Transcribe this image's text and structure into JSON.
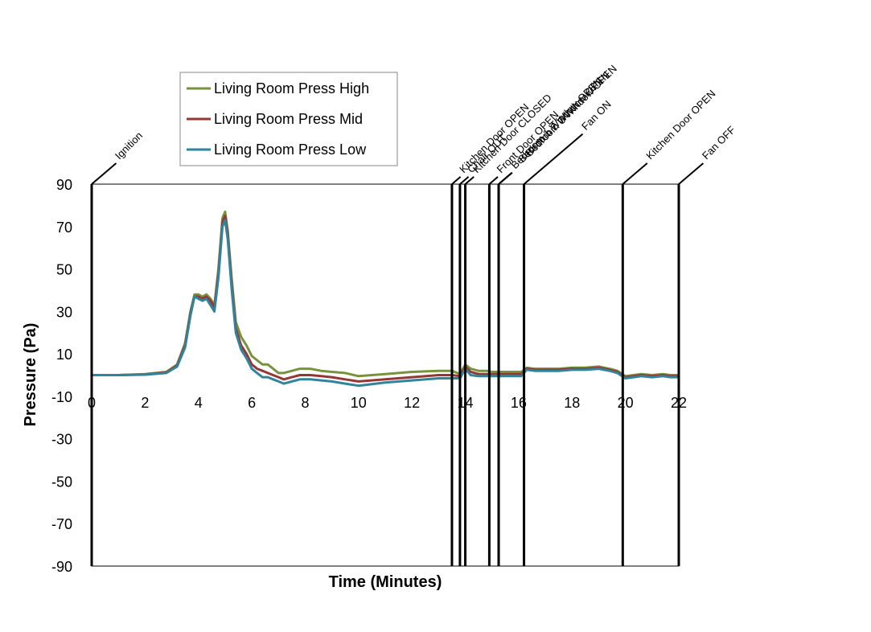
{
  "chart_data": {
    "type": "line",
    "title": "",
    "xlabel": "Time (Minutes)",
    "ylabel": "Pressure (Pa)",
    "xlim": [
      0,
      22
    ],
    "ylim": [
      -90,
      90
    ],
    "x_ticks": [
      0,
      2,
      4,
      6,
      8,
      10,
      12,
      14,
      16,
      18,
      20,
      22
    ],
    "y_ticks": [
      90,
      70,
      50,
      30,
      10,
      -10,
      -30,
      -50,
      -70,
      -90
    ],
    "grid": false,
    "legend_position": "top-left",
    "events": [
      {
        "label": "Ignition",
        "x": 0
      },
      {
        "label": "Kitchen Door OPEN",
        "x": 13.5
      },
      {
        "label": "Chair OUT",
        "x": 13.8
      },
      {
        "label": "Kitchen Door CLOSED",
        "x": 14.0
      },
      {
        "label": "Front Door OPEN",
        "x": 14.9
      },
      {
        "label": "Bedroom 1 Window OPEN",
        "x": 15.25
      },
      {
        "label": "Bedroom 2 Window OPEN",
        "x": 15.25
      },
      {
        "label": "Bedroom 3 Window OPEN",
        "x": 15.25
      },
      {
        "label": "Fan ON",
        "x": 16.2
      },
      {
        "label": "Kitchen Door OPEN",
        "x": 19.9
      },
      {
        "label": "Fan OFF",
        "x": 22.0
      }
    ],
    "series": [
      {
        "name": "Living Room Press High",
        "color": "#77933c",
        "x": [
          0,
          1,
          2,
          2.8,
          3.2,
          3.5,
          3.7,
          3.85,
          4.0,
          4.15,
          4.3,
          4.45,
          4.6,
          4.75,
          4.9,
          5.0,
          5.1,
          5.25,
          5.4,
          5.6,
          5.8,
          6.0,
          6.2,
          6.4,
          6.6,
          6.8,
          7.0,
          7.2,
          7.5,
          7.8,
          8.2,
          8.6,
          9.0,
          9.5,
          10.0,
          11.0,
          12.0,
          13.0,
          13.5,
          13.8,
          14.0,
          14.2,
          14.5,
          14.8,
          15.0,
          15.3,
          15.8,
          16.1,
          16.3,
          16.6,
          17.0,
          17.5,
          18.0,
          18.5,
          19.0,
          19.4,
          19.7,
          20.0,
          20.3,
          20.6,
          21.0,
          21.4,
          21.7,
          22.0
        ],
        "values": [
          0,
          0,
          0.5,
          1.5,
          5,
          15,
          30,
          38,
          38,
          37,
          38,
          36,
          33,
          50,
          74,
          77,
          68,
          45,
          25,
          18,
          14,
          9,
          7,
          5,
          5,
          3,
          1,
          1,
          2,
          3,
          3,
          2,
          1.5,
          1,
          -0.5,
          0.5,
          1.5,
          2,
          2,
          0.5,
          5,
          3,
          2,
          2,
          1.5,
          1.5,
          1.5,
          1.5,
          3.5,
          3,
          3,
          3,
          3.5,
          3.5,
          4,
          3,
          2,
          -0.5,
          0,
          0.5,
          0,
          0.5,
          0,
          0
        ]
      },
      {
        "name": "Living Room Press Mid",
        "color": "#953735",
        "x": [
          0,
          1,
          2,
          2.8,
          3.2,
          3.5,
          3.7,
          3.85,
          4.0,
          4.15,
          4.3,
          4.45,
          4.6,
          4.75,
          4.9,
          5.0,
          5.1,
          5.25,
          5.4,
          5.6,
          5.8,
          6.0,
          6.2,
          6.4,
          6.6,
          6.8,
          7.0,
          7.2,
          7.5,
          7.8,
          8.2,
          8.6,
          9.0,
          9.5,
          10.0,
          11.0,
          12.0,
          13.0,
          13.5,
          13.8,
          14.0,
          14.2,
          14.5,
          14.8,
          15.0,
          15.3,
          15.8,
          16.1,
          16.3,
          16.6,
          17.0,
          17.5,
          18.0,
          18.5,
          19.0,
          19.4,
          19.7,
          20.0,
          20.3,
          20.6,
          21.0,
          21.4,
          21.7,
          22.0
        ],
        "values": [
          0,
          0,
          0.3,
          1.2,
          4.5,
          14,
          29,
          37,
          37,
          36,
          37,
          35,
          32,
          48,
          72,
          75,
          66,
          42,
          22,
          14,
          10,
          5,
          3,
          2,
          1,
          0,
          -1,
          -2,
          -1,
          0,
          0,
          -0.5,
          -1,
          -2,
          -3,
          -2,
          -1,
          0,
          0,
          -0.5,
          4,
          1.5,
          0.5,
          0.5,
          0.5,
          0.5,
          0.5,
          0.5,
          3,
          2.5,
          2.5,
          2.5,
          3,
          3,
          3.5,
          2.5,
          1.5,
          -1,
          -0.5,
          0,
          -0.5,
          0,
          -0.5,
          -0.5
        ]
      },
      {
        "name": "Living Room Press Low",
        "color": "#31849b",
        "x": [
          0,
          1,
          2,
          2.8,
          3.2,
          3.5,
          3.7,
          3.85,
          4.0,
          4.15,
          4.3,
          4.45,
          4.6,
          4.75,
          4.9,
          5.0,
          5.1,
          5.25,
          5.4,
          5.6,
          5.8,
          6.0,
          6.2,
          6.4,
          6.6,
          6.8,
          7.0,
          7.2,
          7.5,
          7.8,
          8.2,
          8.6,
          9.0,
          9.5,
          10.0,
          11.0,
          12.0,
          13.0,
          13.5,
          13.8,
          14.0,
          14.2,
          14.5,
          14.8,
          15.0,
          15.3,
          15.8,
          16.1,
          16.3,
          16.6,
          17.0,
          17.5,
          18.0,
          18.5,
          19.0,
          19.4,
          19.7,
          20.0,
          20.3,
          20.6,
          21.0,
          21.4,
          21.7,
          22.0
        ],
        "values": [
          0,
          0,
          0.2,
          1,
          4,
          13,
          28,
          37,
          36,
          35,
          36,
          33,
          30,
          46,
          70,
          73,
          64,
          40,
          20,
          12,
          8,
          3,
          1,
          -1,
          -1,
          -2,
          -3,
          -4,
          -3,
          -2,
          -2,
          -2.5,
          -3,
          -4,
          -5,
          -3.5,
          -2.5,
          -1.5,
          -1.5,
          -1.5,
          3,
          0,
          -0.5,
          -0.5,
          -0.5,
          -0.5,
          -0.5,
          -0.5,
          2.5,
          2,
          2,
          2,
          2.5,
          2.5,
          3,
          2,
          1,
          -1.5,
          -1,
          -0.5,
          -1,
          -0.5,
          -1,
          -1
        ]
      }
    ]
  }
}
